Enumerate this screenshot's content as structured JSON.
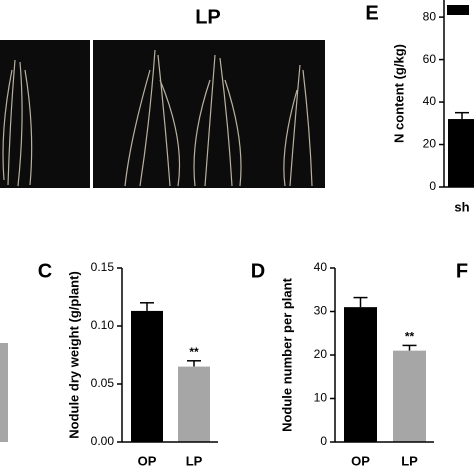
{
  "photo_label": "LP",
  "chart_data": [
    {
      "type": "bar",
      "panel": "E",
      "ylabel": "N content (g/kg)",
      "categories": [
        "sh"
      ],
      "values": [
        32
      ],
      "errors": [
        3
      ],
      "colors": [
        "#000000"
      ],
      "significance": [
        null
      ],
      "ylim": [
        0,
        89
      ],
      "yticks": [
        0,
        20,
        40,
        60,
        80
      ]
    },
    {
      "type": "bar",
      "panel": "C",
      "ylabel": "Nodule dry weight (g/plant)",
      "categories": [
        "OP",
        "LP"
      ],
      "values": [
        0.113,
        0.065
      ],
      "errors": [
        0.007,
        0.005
      ],
      "colors": [
        "#000000",
        "#a6a6a6"
      ],
      "significance": [
        null,
        "**"
      ],
      "ylim": [
        0,
        0.15
      ],
      "yticks": [
        {
          "value": 0,
          "label": "0.00"
        },
        0.05,
        {
          "value": 0.1,
          "label": "0.10"
        },
        0.15
      ]
    },
    {
      "type": "bar",
      "panel": "D",
      "ylabel": "Nodule number per plant",
      "categories": [
        "OP",
        "LP"
      ],
      "values": [
        31,
        21
      ],
      "errors": [
        2.2,
        1.2
      ],
      "colors": [
        "#000000",
        "#a6a6a6"
      ],
      "significance": [
        null,
        "**"
      ],
      "ylim": [
        0,
        40
      ],
      "yticks": [
        0,
        10,
        20,
        30,
        40
      ]
    }
  ],
  "panel_f": "F"
}
